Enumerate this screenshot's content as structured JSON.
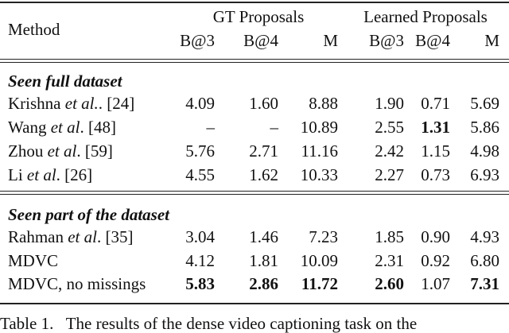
{
  "table": {
    "header": {
      "method": "Method",
      "groups": [
        "GT Proposals",
        "Learned Proposals"
      ],
      "columns": [
        "B@3",
        "B@4",
        "M",
        "B@3",
        "B@4",
        "M"
      ]
    },
    "sections": [
      {
        "title": "Seen full dataset",
        "rows": [
          {
            "method": [
              "Krishna ",
              "et al.",
              ". [24]"
            ],
            "values": [
              "4.09",
              "1.60",
              "8.88",
              "1.90",
              "0.71",
              "5.69"
            ],
            "bold": []
          },
          {
            "method": [
              "Wang ",
              "et al",
              ". [48]"
            ],
            "values": [
              "–",
              "–",
              "10.89",
              "2.55",
              "1.31",
              "5.86"
            ],
            "bold": [
              4
            ]
          },
          {
            "method": [
              "Zhou ",
              "et al",
              ". [59]"
            ],
            "values": [
              "5.76",
              "2.71",
              "11.16",
              "2.42",
              "1.15",
              "4.98"
            ],
            "bold": []
          },
          {
            "method": [
              "Li ",
              "et al",
              ". [26]"
            ],
            "values": [
              "4.55",
              "1.62",
              "10.33",
              "2.27",
              "0.73",
              "6.93"
            ],
            "bold": []
          }
        ]
      },
      {
        "title": "Seen part of the dataset",
        "rows": [
          {
            "method": [
              "Rahman ",
              "et al",
              ". [35]"
            ],
            "values": [
              "3.04",
              "1.46",
              "7.23",
              "1.85",
              "0.90",
              "4.93"
            ],
            "bold": []
          },
          {
            "method": [
              "MDVC"
            ],
            "values": [
              "4.12",
              "1.81",
              "10.09",
              "2.31",
              "0.92",
              "6.80"
            ],
            "bold": []
          },
          {
            "method": [
              "MDVC, no missings"
            ],
            "values": [
              "5.83",
              "2.86",
              "11.72",
              "2.60",
              "1.07",
              "7.31"
            ],
            "bold": [
              0,
              1,
              2,
              3,
              5
            ]
          }
        ]
      }
    ]
  },
  "caption": "Table 1.   The results of the dense video captioning task on the"
}
